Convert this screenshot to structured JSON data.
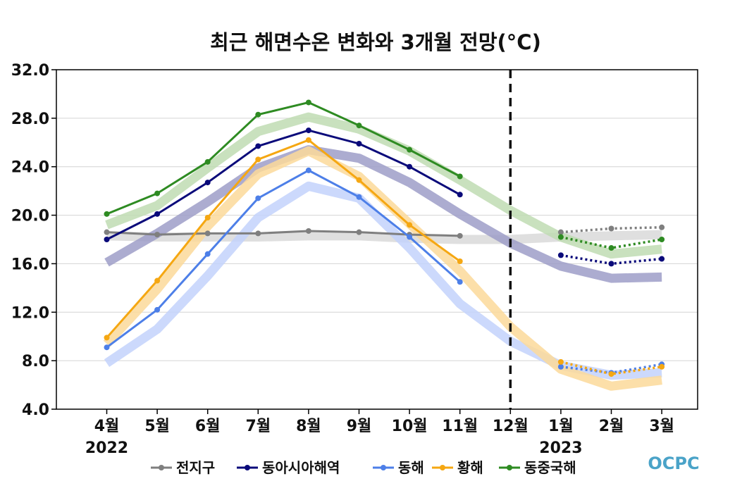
{
  "chart_data": {
    "type": "line",
    "title": "최근 해면수온 변화와 3개월 전망(°C)",
    "categories": [
      "4월",
      "5월",
      "6월",
      "7월",
      "8월",
      "9월",
      "10월",
      "11월",
      "12월",
      "1월",
      "2월",
      "3월"
    ],
    "years": [
      {
        "label": "2022",
        "category_index": 0
      },
      {
        "label": "2023",
        "category_index": 9
      }
    ],
    "ylim": [
      4.0,
      32.0
    ],
    "yticks": [
      "4.0",
      "8.0",
      "12.0",
      "16.0",
      "20.0",
      "24.0",
      "28.0",
      "32.0"
    ],
    "forecast_divider_after": "12월",
    "grid": "horizontal",
    "legend_position": "bottom",
    "series": [
      {
        "name": "전지구",
        "color": "#7f7f7f",
        "band_color": "#d9d9d9",
        "observed": [
          18.6,
          18.4,
          18.5,
          18.5,
          18.7,
          18.6,
          18.4,
          18.3,
          null,
          null,
          null,
          null
        ],
        "forecast": [
          null,
          null,
          null,
          null,
          null,
          null,
          null,
          null,
          null,
          18.6,
          18.9,
          19.0
        ],
        "climatology": [
          18.3,
          18.2,
          18.2,
          18.2,
          18.3,
          18.3,
          18.1,
          18.0,
          18.0,
          18.2,
          18.3,
          18.4
        ]
      },
      {
        "name": "동아시아해역",
        "color": "#0a0a7a",
        "band_color": "#9d9dc8",
        "observed": [
          18.0,
          20.1,
          22.7,
          25.7,
          27.0,
          25.9,
          24.0,
          21.7,
          null,
          null,
          null,
          null
        ],
        "forecast": [
          null,
          null,
          null,
          null,
          null,
          null,
          null,
          null,
          null,
          16.7,
          16.0,
          16.4
        ],
        "climatology": [
          16.1,
          18.5,
          21.1,
          23.9,
          25.4,
          24.7,
          22.7,
          20.1,
          17.7,
          15.8,
          14.8,
          14.9
        ]
      },
      {
        "name": "동해",
        "color": "#4d7fe8",
        "band_color": "#c3d2fb",
        "observed": [
          9.1,
          12.2,
          16.8,
          21.4,
          23.7,
          21.5,
          18.2,
          14.5,
          null,
          null,
          null,
          null
        ],
        "forecast": [
          null,
          null,
          null,
          null,
          null,
          null,
          null,
          null,
          null,
          7.5,
          7.0,
          7.7
        ],
        "climatology": [
          7.8,
          10.6,
          15.0,
          19.8,
          22.4,
          21.4,
          17.3,
          12.7,
          9.6,
          7.6,
          6.8,
          7.0
        ]
      },
      {
        "name": "황해",
        "color": "#f5a712",
        "band_color": "#fbd99a",
        "observed": [
          9.9,
          14.6,
          19.8,
          24.6,
          26.2,
          22.9,
          19.2,
          16.2,
          null,
          null,
          null,
          null
        ],
        "forecast": [
          null,
          null,
          null,
          null,
          null,
          null,
          null,
          null,
          null,
          7.9,
          6.9,
          7.5
        ],
        "climatology": [
          9.4,
          13.9,
          19.1,
          23.4,
          25.3,
          23.2,
          19.3,
          15.4,
          10.8,
          7.3,
          5.9,
          6.4
        ]
      },
      {
        "name": "동중국해",
        "color": "#2e8b22",
        "band_color": "#bfdcb3",
        "observed": [
          20.1,
          21.8,
          24.4,
          28.3,
          29.3,
          27.4,
          25.4,
          23.2,
          null,
          null,
          null,
          null
        ],
        "forecast": [
          null,
          null,
          null,
          null,
          null,
          null,
          null,
          null,
          null,
          18.2,
          17.3,
          18.0
        ],
        "climatology": [
          19.2,
          20.8,
          23.9,
          26.9,
          28.1,
          27.1,
          25.3,
          22.9,
          20.4,
          18.2,
          16.8,
          17.2
        ]
      }
    ]
  },
  "logo": {
    "text": "OCPC"
  }
}
